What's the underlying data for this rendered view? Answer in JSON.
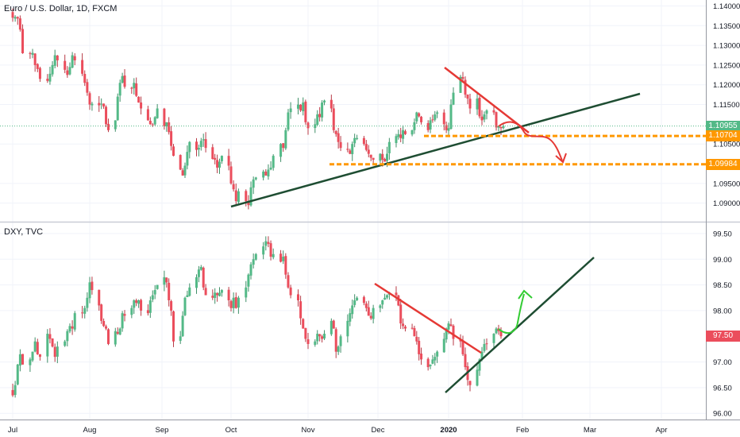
{
  "colors": {
    "up": "#53b987",
    "down": "#eb4d5c",
    "up_wick": "#3f8f68",
    "down_wick": "#b73a46",
    "trend_dark": "#1e4d32",
    "trend_red": "#e53935",
    "support_orange": "#ff9800",
    "arrow_red": "#e53935",
    "arrow_green": "#33cc33",
    "grid": "#f0f3fa"
  },
  "top_pane": {
    "title": "Euro / U.S. Dollar, 1D, FXCM"
  },
  "bottom_pane": {
    "title": "DXY, TVC"
  },
  "x_axis": {
    "labels": [
      "Jul",
      "Aug",
      "Sep",
      "Oct",
      "Nov",
      "Dec",
      "2020",
      "Feb",
      "Mar",
      "Apr"
    ]
  },
  "chart_data": [
    {
      "type": "candlestick",
      "title": "Euro / U.S. Dollar, 1D, FXCM",
      "y_ticks": [
        "1.14000",
        "1.13500",
        "1.13000",
        "1.12500",
        "1.12000",
        "1.11500",
        "1.10500",
        "1.09500",
        "1.09000"
      ],
      "ylim": [
        1.0855,
        1.1415
      ],
      "price_labels": [
        {
          "text": "1.10955",
          "value": 1.10955,
          "color": "#53b987"
        },
        {
          "text": "1.10704",
          "value": 1.10704,
          "color": "#ff9800"
        },
        {
          "text": "1.09984",
          "value": 1.09984,
          "color": "#ff9800"
        }
      ],
      "date_range": [
        "2019-07-01",
        "2020-01-22"
      ],
      "closes": [
        1.137,
        1.1372,
        1.1368,
        1.134,
        1.128,
        1.1278,
        1.1281,
        1.125,
        1.124,
        1.1215,
        1.121,
        1.1228,
        1.125,
        1.1275,
        1.1262,
        1.1238,
        1.1225,
        1.1245,
        1.1275,
        1.1262,
        1.1228,
        1.1205,
        1.118,
        1.115,
        1.1152,
        1.1148,
        1.1152,
        1.1145,
        1.11,
        1.1085,
        1.111,
        1.117,
        1.1205,
        1.1222,
        1.1195,
        1.119,
        1.1205,
        1.1172,
        1.1155,
        1.114,
        1.111,
        1.11,
        1.1098,
        1.1118,
        1.114,
        1.1095,
        1.1105,
        1.108,
        1.1045,
        1.102,
        1.0985,
        1.097,
        1.0995,
        1.103,
        1.1055,
        1.1035,
        1.104,
        1.1058,
        1.1062,
        1.104,
        1.1012,
        1.101,
        1.099,
        1.1005,
        1.102,
        1.0995,
        1.095,
        1.0935,
        1.0905,
        1.093,
        1.0905,
        1.0895,
        1.094,
        1.096,
        1.0965,
        1.098,
        1.097,
        1.0985,
        1.099,
        1.102,
        1.105,
        1.104,
        1.1085,
        1.113,
        1.114,
        1.115,
        1.1135,
        1.1155,
        1.1105,
        1.109,
        1.11,
        1.1125,
        1.1118,
        1.1155,
        1.116,
        1.114,
        1.1085,
        1.1075,
        1.1055,
        1.104,
        1.1035,
        1.1025,
        1.105,
        1.1065,
        1.1065,
        1.105,
        1.1035,
        1.1025,
        1.1015,
        1.101,
        1.1025,
        1.101,
        1.1005,
        1.1025,
        1.1055,
        1.107,
        1.1075,
        1.1065,
        1.1085,
        1.1075,
        1.1085,
        1.1105,
        1.113,
        1.112,
        1.1105,
        1.1085,
        1.111,
        1.111,
        1.1125,
        1.113,
        1.11,
        1.1085,
        1.109,
        1.115,
        1.118,
        1.122,
        1.1215,
        1.1175,
        1.1165,
        1.114,
        1.1165,
        1.112,
        1.111,
        1.1125,
        1.1135,
        1.113,
        1.1092,
        1.1095,
        1.109,
        1.1095
      ]
    },
    {
      "type": "candlestick",
      "title": "DXY, TVC",
      "y_ticks": [
        "99.50",
        "99.00",
        "98.50",
        "98.00",
        "97.00",
        "96.50",
        "96.00"
      ],
      "ylim": [
        95.88,
        99.7
      ],
      "price_labels": [
        {
          "text": "97.50",
          "value": 97.5,
          "color": "#eb4d5c"
        }
      ],
      "date_range": [
        "2019-07-01",
        "2020-01-22"
      ],
      "closes": [
        96.35,
        96.55,
        96.95,
        97.15,
        96.95,
        97.05,
        97.2,
        97.4,
        97.15,
        97.1,
        97.55,
        97.45,
        97.3,
        97.1,
        97.3,
        97.4,
        97.6,
        97.7,
        97.65,
        97.95,
        97.95,
        98.05,
        98.25,
        98.55,
        98.4,
        98.1,
        97.8,
        97.7,
        97.65,
        97.35,
        97.6,
        97.55,
        97.65,
        97.95,
        97.9,
        98.05,
        98.2,
        98.15,
        98.2,
        98.0,
        97.95,
        98.2,
        98.3,
        98.4,
        98.5,
        98.65,
        98.55,
        98.2,
        98.0,
        97.4,
        97.5,
        97.9,
        98.25,
        98.3,
        98.45,
        98.65,
        98.8,
        98.85,
        98.45,
        98.3,
        98.25,
        98.35,
        98.3,
        98.35,
        98.4,
        98.2,
        98.05,
        98.25,
        98.05,
        98.25,
        98.45,
        98.7,
        98.9,
        99.0,
        99.1,
        99.25,
        99.35,
        99.3,
        99.05,
        99.1,
        98.95,
        99.05,
        98.7,
        98.45,
        98.3,
        98.2,
        97.85,
        97.65,
        97.45,
        97.35,
        97.4,
        97.55,
        97.5,
        97.45,
        97.55,
        97.8,
        97.65,
        97.2,
        97.3,
        97.5,
        97.8,
        97.95,
        98.1,
        98.2,
        98.25,
        98.15,
        98.05,
        97.9,
        97.85,
        98.05,
        98.1,
        98.2,
        98.25,
        98.3,
        98.35,
        98.3,
        98.1,
        97.75,
        97.7,
        97.65,
        97.65,
        97.5,
        97.4,
        97.15,
        97.05,
        96.9,
        96.95,
        97.05,
        97.1,
        97.2,
        97.45,
        97.65,
        97.75,
        97.7,
        97.45,
        97.4,
        97.15,
        96.9,
        96.65,
        96.55,
        96.85,
        97.05,
        97.2,
        97.35,
        97.35,
        97.55,
        97.65,
        97.6,
        97.5
      ]
    }
  ]
}
